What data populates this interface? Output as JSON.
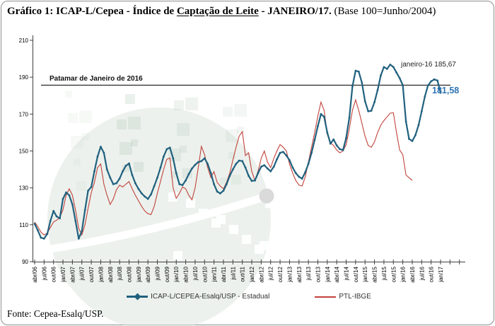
{
  "title": {
    "part1": "Gráfico 1: ICAP-L/Cepea - Índice de ",
    "underlined": "Captação de Leite",
    "part2": " - JANEIRO/17.",
    "note": " (Base 100=Junho/2004)"
  },
  "source": "Fonte: Cepea-Esalq/USP.",
  "colors": {
    "series_blue": "#20617E",
    "series_red": "#C2423B",
    "annotation_blue": "#2E74B5",
    "axis": "#404040",
    "reference_line": "#1a1a1a",
    "watermark_green": "#adc4b2"
  },
  "chart_data": {
    "type": "line",
    "title": "ICAP-L/Cepea - Índice de Captação de Leite - JANEIRO/17 (Base 100=Junho/2004)",
    "x_domain_note": "monthly from abr/06 to jan/17, ticks every quarter",
    "x_tick_labels": [
      "abr/06",
      "jul/06",
      "out/06",
      "jan/07",
      "abr/07",
      "jul/07",
      "out/07",
      "jan/08",
      "abr/08",
      "jul/08",
      "out/08",
      "jan/09",
      "abr/09",
      "jul/09",
      "out/09",
      "jan/10",
      "abr/10",
      "jul/10",
      "out/10",
      "jan/11",
      "abr/11",
      "jul/11",
      "out/11",
      "jan/12",
      "abr/12",
      "jul/12",
      "out/12",
      "jan/13",
      "abr/13",
      "jul/13",
      "out/13",
      "jan/14",
      "abr/14",
      "jul/14",
      "out/14",
      "jan/15",
      "abr/15",
      "jul/15",
      "out/15",
      "jan/16",
      "abr/16",
      "jul/16",
      "out/16",
      "jan/17"
    ],
    "y_ticks": [
      90,
      110,
      130,
      150,
      170,
      190,
      210
    ],
    "ylim": [
      90,
      210
    ],
    "grid": false,
    "legend_position": "bottom",
    "reference_line": {
      "label": "Patamar de Janeiro de 2016",
      "value": 185.67
    },
    "annotations": [
      {
        "id": "jan16",
        "text": "janeiro-16 185,67"
      },
      {
        "id": "last-value",
        "text": "181,58"
      }
    ],
    "series": [
      {
        "name": "ICAP-L/CEPEA-Esalq/USP - Estadual",
        "color": "#20617E",
        "marker": true,
        "values": [
          110.5,
          107,
          103,
          102.5,
          105,
          112,
          117.5,
          114.5,
          113.5,
          124,
          127.5,
          126,
          121,
          112,
          102.5,
          106.5,
          118,
          128.5,
          130.5,
          139,
          147,
          152.3,
          149,
          140,
          135.5,
          132,
          132.5,
          135,
          139,
          142,
          143.2,
          137,
          132.5,
          129.5,
          127,
          125.3,
          124,
          126.5,
          131,
          135.5,
          141,
          147,
          151,
          151.8,
          146,
          138,
          132,
          131.5,
          134,
          137.5,
          140.5,
          142.5,
          144,
          144.5,
          146,
          143,
          138,
          132,
          128,
          127,
          128.5,
          132,
          136.5,
          140,
          143,
          144.8,
          144.5,
          141,
          136.5,
          133.8,
          134,
          138,
          141.5,
          142.3,
          140.5,
          139,
          141.5,
          145.5,
          149,
          149.5,
          147.5,
          145,
          141,
          138,
          136,
          135,
          138.5,
          143,
          149,
          156,
          163.5,
          170,
          168.5,
          160,
          154,
          156.3,
          153,
          151,
          150.5,
          157,
          168,
          185,
          193.5,
          193,
          187,
          177,
          171.5,
          171.8,
          176.5,
          183,
          191,
          195.5,
          194.5,
          196.8,
          195.5,
          192.5,
          189.5,
          185.67,
          166,
          156.5,
          155.4,
          158.5,
          164,
          171.5,
          179.5,
          185.5,
          187.8,
          188.8,
          188.2,
          181.58
        ]
      },
      {
        "name": "PTL-IBGE",
        "color": "#C2423B",
        "marker": false,
        "values": [
          111.5,
          109,
          106,
          104.5,
          105.5,
          108.5,
          111.5,
          112.5,
          114,
          118,
          126,
          129.5,
          126,
          118,
          108,
          104.5,
          110,
          119,
          127.5,
          133,
          141,
          143,
          132,
          126,
          121,
          124,
          129,
          131.5,
          130.5,
          132,
          133.4,
          129.5,
          126,
          123,
          120,
          117.5,
          116,
          115.5,
          120,
          127,
          133.5,
          140,
          145.5,
          146.2,
          130,
          124.3,
          127,
          130.5,
          129.5,
          126,
          123.5,
          130,
          141,
          152.5,
          148,
          141,
          135.6,
          138.8,
          133,
          131,
          129.5,
          133,
          138,
          145,
          152,
          158,
          160.5,
          147.5,
          149,
          139,
          134,
          139,
          146,
          150,
          144,
          141,
          146,
          150,
          153.5,
          152,
          150,
          143,
          138,
          134,
          131.5,
          131,
          136,
          144,
          152,
          160,
          169,
          176.5,
          172,
          159,
          154.5,
          153,
          150.5,
          149,
          150,
          153.5,
          162,
          172,
          177.7,
          172,
          165,
          158,
          153,
          152,
          155,
          160,
          164,
          166.5,
          168.5,
          170.5,
          170.7,
          160,
          150.5,
          148,
          137,
          135.5,
          134
        ]
      }
    ]
  }
}
